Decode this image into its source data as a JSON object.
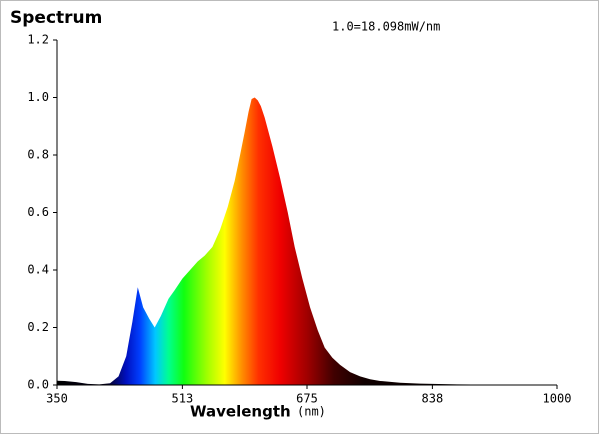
{
  "chart_data": {
    "type": "area",
    "title": "Spectrum",
    "annotation": "1.0=18.098mW/nm",
    "xlabel": "Wavelength",
    "xlabel_unit": "(nm)",
    "xlim": [
      350,
      1000
    ],
    "xticks": [
      350,
      513,
      675,
      838,
      1000
    ],
    "ylim": [
      0,
      1.2
    ],
    "yticks": [
      {
        "value": 0,
        "label": "0.0"
      },
      0.2,
      0.4,
      0.6,
      0.8,
      {
        "value": 1,
        "label": "1.0"
      },
      1.2
    ],
    "x": [
      350,
      360,
      375,
      390,
      405,
      419,
      430,
      440,
      448,
      455,
      462,
      470,
      477,
      485,
      495,
      503,
      513,
      523,
      533,
      542,
      552,
      562,
      572,
      581,
      588,
      594,
      599,
      603,
      607,
      611,
      615,
      620,
      630,
      640,
      650,
      659,
      669,
      679,
      689,
      698,
      708,
      718,
      731,
      744,
      757,
      770,
      796,
      822,
      870,
      926,
      960,
      1000
    ],
    "series": [
      {
        "name": "Spectrum",
        "values": [
          0.015,
          0.014,
          0.01,
          0.004,
          0.002,
          0.006,
          0.03,
          0.1,
          0.22,
          0.34,
          0.27,
          0.23,
          0.2,
          0.24,
          0.3,
          0.33,
          0.37,
          0.4,
          0.43,
          0.45,
          0.48,
          0.54,
          0.62,
          0.71,
          0.8,
          0.88,
          0.95,
          0.995,
          1.0,
          0.99,
          0.97,
          0.93,
          0.83,
          0.72,
          0.6,
          0.48,
          0.37,
          0.27,
          0.19,
          0.13,
          0.095,
          0.07,
          0.045,
          0.03,
          0.02,
          0.014,
          0.008,
          0.005,
          0.002,
          0.001,
          0.0005,
          0
        ]
      }
    ],
    "fill_gradient": [
      {
        "x": 350,
        "color": "#000000"
      },
      {
        "x": 415,
        "color": "#050020"
      },
      {
        "x": 440,
        "color": "#0010c0"
      },
      {
        "x": 458,
        "color": "#0040ff"
      },
      {
        "x": 478,
        "color": "#00c8ff"
      },
      {
        "x": 495,
        "color": "#00ff90"
      },
      {
        "x": 515,
        "color": "#10ff10"
      },
      {
        "x": 545,
        "color": "#a0ff00"
      },
      {
        "x": 568,
        "color": "#ffff00"
      },
      {
        "x": 590,
        "color": "#ff9000"
      },
      {
        "x": 612,
        "color": "#ff3000"
      },
      {
        "x": 640,
        "color": "#f00000"
      },
      {
        "x": 675,
        "color": "#a00000"
      },
      {
        "x": 710,
        "color": "#400000"
      },
      {
        "x": 750,
        "color": "#100000"
      },
      {
        "x": 1000,
        "color": "#000000"
      }
    ]
  }
}
